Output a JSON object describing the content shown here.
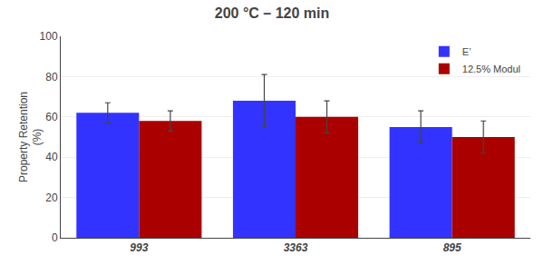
{
  "chart_data": {
    "type": "bar",
    "title": "200 °C – 120 min",
    "ylabel": "Property Retention\n(%)",
    "categories": [
      "993",
      "3363",
      "895"
    ],
    "series": [
      {
        "name": "E’",
        "color": "#3333FF",
        "values": [
          62,
          68,
          55
        ],
        "errors": [
          5,
          13,
          8
        ]
      },
      {
        "name": "12.5% Modul",
        "color": "#AA0000",
        "values": [
          58,
          60,
          50
        ],
        "errors": [
          5,
          8,
          8
        ]
      }
    ],
    "ylim": [
      0,
      100
    ],
    "yticks": [
      0,
      20,
      40,
      60,
      80,
      100
    ],
    "grid": true,
    "legend": "upper right"
  }
}
